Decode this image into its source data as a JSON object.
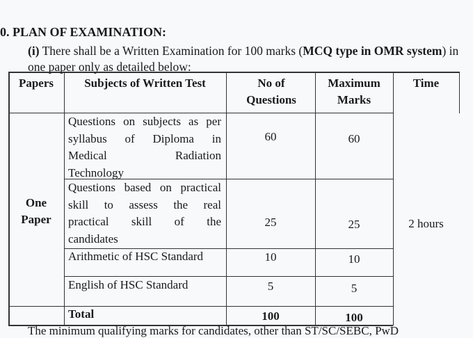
{
  "section": {
    "heading": "0. PLAN OF EXAMINATION:",
    "intro": {
      "marker": "(i)",
      "text_before": " There shall be a Written Examination for 100 marks (",
      "bold": "MCQ type in OMR system",
      "text_after": ") in one paper only as detailed below:"
    }
  },
  "table": {
    "headers": [
      "Papers",
      "Subjects of Written Test",
      "No of Questions",
      "Maximum Marks",
      "Time"
    ],
    "paper": "One Paper",
    "time": "2 hours",
    "rows": [
      {
        "subject_lines": [
          "Questions on subjects as per",
          "syllabus of Diploma in",
          "Medical Radiation",
          "Technology"
        ],
        "questions": "60",
        "marks": "60"
      },
      {
        "subject_lines": [
          "Questions based on practical",
          "skill to assess the real",
          "practical skill of the",
          "candidates"
        ],
        "questions": "25",
        "marks": "25"
      },
      {
        "subject_lines": [
          "Arithmetic of HSC Standard"
        ],
        "questions": "10",
        "marks": "10"
      },
      {
        "subject_lines": [
          "English of HSC Standard"
        ],
        "questions": "5",
        "marks": "5"
      }
    ],
    "total": {
      "label": "Total",
      "questions": "100",
      "marks": "100"
    }
  },
  "footer": "The minimum qualifying marks for candidates, other than ST/SC/SEBC, PwD"
}
